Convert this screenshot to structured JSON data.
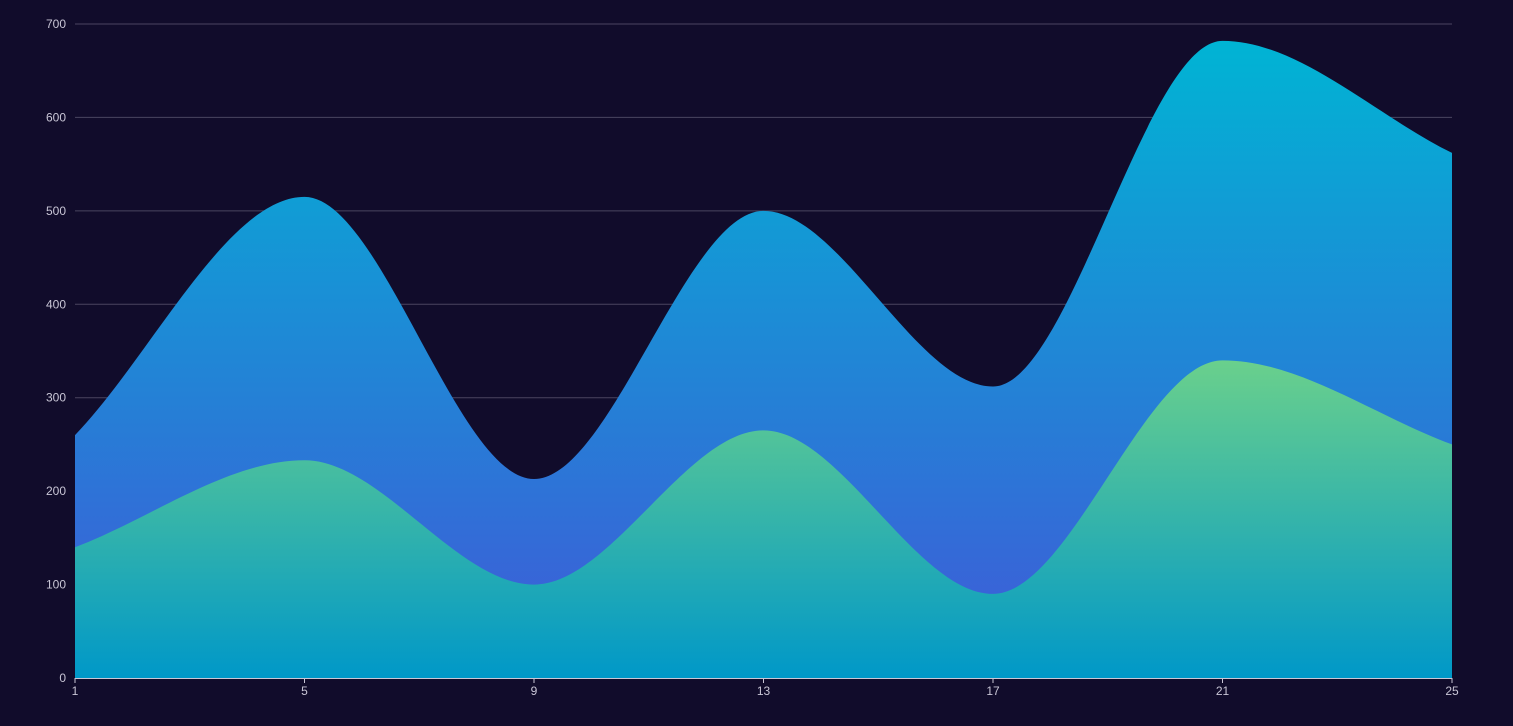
{
  "chart_data": {
    "type": "area",
    "title": "",
    "xlabel": "",
    "ylabel": "",
    "x": [
      1,
      5,
      9,
      13,
      17,
      21,
      25
    ],
    "x_ticks": [
      "1",
      "5",
      "9",
      "13",
      "17",
      "21",
      "25"
    ],
    "y_ticks": [
      "0",
      "100",
      "200",
      "300",
      "400",
      "500",
      "600",
      "700"
    ],
    "xlim": [
      1,
      25
    ],
    "ylim": [
      0,
      700
    ],
    "grid": "horizontal",
    "smooth": true,
    "series": [
      {
        "values": [
          260,
          515,
          213,
          500,
          312,
          682,
          562
        ],
        "gradient": [
          "#00b4d4",
          "#4158d8"
        ]
      },
      {
        "values": [
          140,
          233,
          100,
          265,
          90,
          340,
          250
        ],
        "gradient": [
          "#6ad08c",
          "#0098c8"
        ]
      }
    ],
    "colors": {
      "background": "#110c2b",
      "grid": "#4a4560",
      "axis": "#c9c6d6",
      "tick_label": "#c9c6d6"
    }
  }
}
